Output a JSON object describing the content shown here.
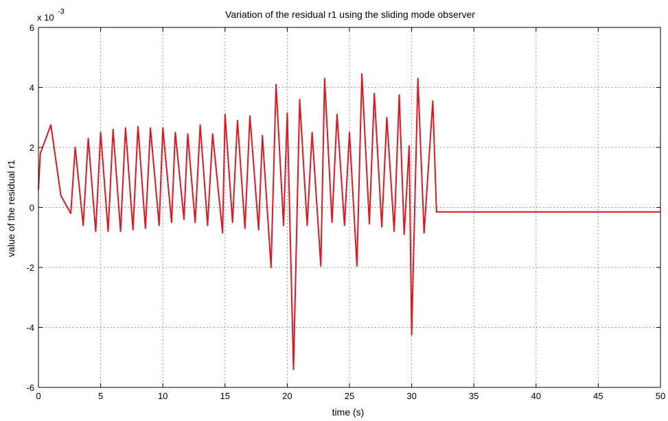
{
  "chart_data": {
    "type": "line",
    "title": "Variation of the residual r1 using the sliding mode observer",
    "xlabel": "time (s)",
    "ylabel": "value of the residual r1",
    "exponent_base": "x 10",
    "exponent_power": "-3",
    "xlim": [
      0,
      50
    ],
    "ylim": [
      -6,
      6
    ],
    "xticks": [
      0,
      5,
      10,
      15,
      20,
      25,
      30,
      35,
      40,
      45,
      50
    ],
    "yticks": [
      -6,
      -4,
      -2,
      0,
      2,
      4,
      6
    ],
    "xtick_labels": [
      "0",
      "5",
      "10",
      "15",
      "20",
      "25",
      "30",
      "35",
      "40",
      "45",
      "50"
    ],
    "ytick_labels": [
      "-6",
      "-4",
      "-2",
      "0",
      "2",
      "4",
      "6"
    ],
    "grid": true,
    "legend": null,
    "series": [
      {
        "color": "#e8141c",
        "x": [
          0,
          0.15,
          1.0,
          1.8,
          2.6,
          2.95,
          3.6,
          4.0,
          4.6,
          5.0,
          5.6,
          6.0,
          6.6,
          7.0,
          7.6,
          8.0,
          8.6,
          9.0,
          9.7,
          10.0,
          10.7,
          11.0,
          11.7,
          12.0,
          12.6,
          13.0,
          13.6,
          14.0,
          14.8,
          15.0,
          15.6,
          16.0,
          16.6,
          17.0,
          17.7,
          18.0,
          18.7,
          19.1,
          19.7,
          20.0,
          20.5,
          21.0,
          21.6,
          22.0,
          22.7,
          23.0,
          23.6,
          24.0,
          24.6,
          25.0,
          25.6,
          26.0,
          26.6,
          27.0,
          27.6,
          28.0,
          28.6,
          29.0,
          29.4,
          29.8,
          30.0,
          30.5,
          31.0,
          31.7,
          32.0,
          50.0
        ],
        "y": [
          0.6,
          1.8,
          2.75,
          0.4,
          -0.2,
          2.0,
          -0.6,
          2.3,
          -0.8,
          2.5,
          -0.8,
          2.6,
          -0.8,
          2.65,
          -0.75,
          2.7,
          -0.7,
          2.65,
          -0.6,
          2.65,
          -0.5,
          2.5,
          -0.4,
          2.45,
          -0.5,
          2.75,
          -0.6,
          2.45,
          -0.85,
          3.1,
          -0.5,
          2.9,
          -0.7,
          3.05,
          -0.75,
          2.4,
          -2.0,
          4.1,
          -0.6,
          3.15,
          -5.4,
          3.6,
          -0.6,
          2.5,
          -1.95,
          4.3,
          -0.5,
          3.1,
          -0.6,
          2.5,
          -1.95,
          4.45,
          -0.55,
          3.8,
          -0.65,
          3.0,
          -0.8,
          3.75,
          -0.9,
          2.05,
          -4.25,
          4.3,
          -0.85,
          3.55,
          -0.15,
          -0.15
        ]
      }
    ]
  }
}
